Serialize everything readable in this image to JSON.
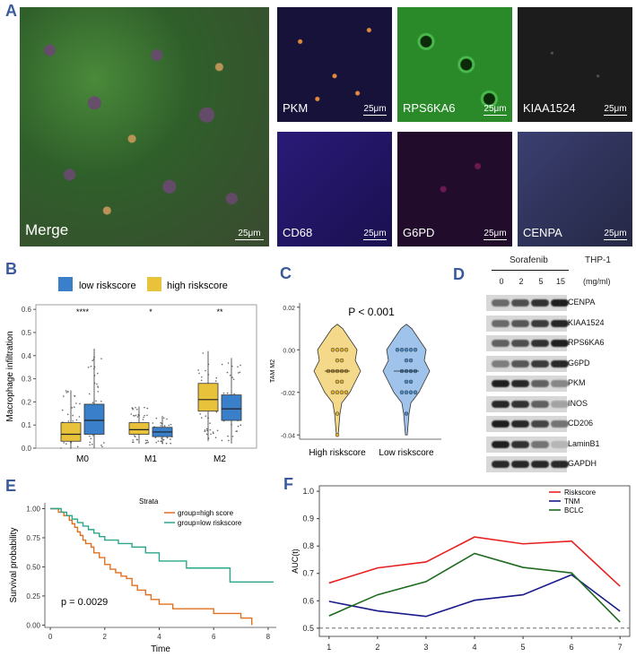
{
  "panels": {
    "a": "A",
    "b": "B",
    "c": "C",
    "d": "D",
    "e": "E",
    "f": "F"
  },
  "panelA": {
    "scale": "25μm",
    "tiles": [
      {
        "label": "Merge",
        "scale": "25μm",
        "color": "#2e6a2c"
      },
      {
        "label": "PKM",
        "scale": "25μm",
        "color": "#1a1a3a"
      },
      {
        "label": "RPS6KA6",
        "scale": "25μm",
        "color": "#1f7a20"
      },
      {
        "label": "KIAA1524",
        "scale": "25μm",
        "color": "#2a2a2a"
      },
      {
        "label": "CD68",
        "scale": "25μm",
        "color": "#1d1660"
      },
      {
        "label": "G6PD",
        "scale": "25μm",
        "color": "#2c1138"
      },
      {
        "label": "CENPA",
        "scale": "25μm",
        "color": "#2c2f52"
      }
    ]
  },
  "chart_data": [
    {
      "id": "B",
      "type": "box",
      "ylabel": "Macrophage infiltration",
      "categories": [
        "M0",
        "M1",
        "M2"
      ],
      "legend": [
        "low riskscore",
        "high riskscore"
      ],
      "colors": {
        "low": "#3a7fc9",
        "high": "#e8c23a"
      },
      "yticks": [
        "0.0",
        "0.1",
        "0.2",
        "0.3",
        "0.4",
        "0.5",
        "0.6"
      ],
      "ylim": [
        0,
        0.62
      ],
      "significance": [
        "****",
        "*",
        "**"
      ],
      "series": [
        {
          "name": "high riskscore",
          "boxes": [
            {
              "q1": 0.03,
              "median": 0.06,
              "q3": 0.11,
              "lo": 0.0,
              "hi": 0.25
            },
            {
              "q1": 0.06,
              "median": 0.08,
              "q3": 0.11,
              "lo": 0.02,
              "hi": 0.18
            },
            {
              "q1": 0.16,
              "median": 0.21,
              "q3": 0.28,
              "lo": 0.03,
              "hi": 0.42
            }
          ]
        },
        {
          "name": "low riskscore",
          "boxes": [
            {
              "q1": 0.06,
              "median": 0.12,
              "q3": 0.19,
              "lo": 0.0,
              "hi": 0.43
            },
            {
              "q1": 0.05,
              "median": 0.07,
              "q3": 0.09,
              "lo": 0.02,
              "hi": 0.14
            },
            {
              "q1": 0.12,
              "median": 0.17,
              "q3": 0.23,
              "lo": 0.02,
              "hi": 0.39
            }
          ]
        }
      ]
    },
    {
      "id": "C",
      "type": "violin",
      "ylabel": "TAM M2",
      "annotation": "P < 0.001",
      "categories": [
        "High riskscore",
        "Low riskscore"
      ],
      "yticks": [
        "0.02",
        "0.00",
        "-0.02",
        "-0.04"
      ],
      "ytick_values": [
        0.02,
        0.0,
        -0.02,
        -0.04
      ],
      "ylim": [
        -0.042,
        0.022
      ],
      "colors": [
        "#f5d98a",
        "#9fc3ea"
      ],
      "points": [
        [
          0.0,
          0.0,
          0.0,
          0.0,
          -0.005,
          -0.005,
          -0.01,
          -0.01,
          -0.01,
          -0.01,
          -0.01,
          -0.015,
          -0.015,
          -0.02,
          -0.02,
          -0.02,
          -0.02,
          -0.03,
          -0.04
        ],
        [
          0.0,
          0.0,
          0.0,
          0.0,
          0.0,
          -0.005,
          -0.005,
          -0.01,
          -0.01,
          -0.01,
          -0.01,
          -0.015,
          -0.015,
          -0.02,
          -0.02,
          -0.02,
          -0.02,
          -0.03
        ]
      ]
    },
    {
      "id": "E",
      "type": "line",
      "xlabel": "Time",
      "ylabel": "Survival probability",
      "annotation": "p = 0.0029",
      "legend_title": "Strata",
      "xticks": [
        "0",
        "2",
        "4",
        "6",
        "8"
      ],
      "xtick_values": [
        0,
        2,
        4,
        6,
        8
      ],
      "yticks": [
        "0.00",
        "0.25",
        "0.50",
        "0.75",
        "1.00"
      ],
      "ytick_values": [
        0,
        0.25,
        0.5,
        0.75,
        1.0
      ],
      "xlim": [
        -0.2,
        8.3
      ],
      "ylim": [
        -0.02,
        1.05
      ],
      "series": [
        {
          "name": "group=high score",
          "color": "#e07020",
          "x": [
            0,
            0.3,
            0.5,
            0.7,
            0.8,
            0.9,
            1.0,
            1.1,
            1.2,
            1.3,
            1.5,
            1.6,
            1.8,
            2.0,
            2.2,
            2.4,
            2.6,
            2.8,
            3.0,
            3.2,
            3.5,
            3.7,
            4.0,
            4.5,
            6.0,
            7.0,
            7.4
          ],
          "y": [
            1.0,
            0.97,
            0.94,
            0.9,
            0.87,
            0.84,
            0.8,
            0.77,
            0.73,
            0.7,
            0.67,
            0.62,
            0.58,
            0.52,
            0.48,
            0.45,
            0.42,
            0.4,
            0.34,
            0.3,
            0.26,
            0.22,
            0.18,
            0.14,
            0.1,
            0.06,
            0.0
          ]
        },
        {
          "name": "group=low riskscore",
          "color": "#2aa68a",
          "x": [
            0,
            0.4,
            0.6,
            0.8,
            1.0,
            1.2,
            1.4,
            1.6,
            1.8,
            2.0,
            2.5,
            3.0,
            3.5,
            4.0,
            5.0,
            6.6,
            8.2
          ],
          "y": [
            1.0,
            0.97,
            0.94,
            0.91,
            0.88,
            0.85,
            0.82,
            0.79,
            0.76,
            0.73,
            0.7,
            0.67,
            0.62,
            0.55,
            0.49,
            0.37,
            0.37
          ]
        }
      ]
    },
    {
      "id": "F",
      "type": "line",
      "ylabel": "AUC(t)",
      "xticks": [
        "1",
        "2",
        "3",
        "4",
        "5",
        "6",
        "7"
      ],
      "x": [
        1,
        2,
        3,
        4,
        5,
        6,
        7
      ],
      "yticks": [
        "0.5",
        "0.6",
        "0.7",
        "0.8",
        "0.9",
        "1.0"
      ],
      "ytick_values": [
        0.5,
        0.6,
        0.7,
        0.8,
        0.9,
        1.0
      ],
      "xlim": [
        0.8,
        7.2
      ],
      "ylim": [
        0.47,
        1.02
      ],
      "reference_line": 0.5,
      "series": [
        {
          "name": "Riskscore",
          "color": "#e82020",
          "values": [
            0.665,
            0.72,
            0.742,
            0.833,
            0.808,
            0.818,
            0.653
          ]
        },
        {
          "name": "TNM",
          "color": "#1a1a8a",
          "values": [
            0.598,
            0.563,
            0.543,
            0.602,
            0.622,
            0.695,
            0.562
          ]
        },
        {
          "name": "BCLC",
          "color": "#1e6a1e",
          "values": [
            0.545,
            0.622,
            0.67,
            0.773,
            0.722,
            0.702,
            0.522
          ]
        }
      ]
    }
  ],
  "panelD": {
    "treatment": "Sorafenib",
    "cell": "THP-1",
    "unit": "(mg/ml)",
    "doses": [
      "0",
      "2",
      "5",
      "15"
    ],
    "bands": [
      {
        "label": "CENPA",
        "intensity": [
          0.55,
          0.7,
          0.85,
          0.95
        ]
      },
      {
        "label": "KIAA1524",
        "intensity": [
          0.55,
          0.65,
          0.8,
          0.9
        ]
      },
      {
        "label": "RPS6KA6",
        "intensity": [
          0.6,
          0.7,
          0.85,
          0.95
        ]
      },
      {
        "label": "G6PD",
        "intensity": [
          0.45,
          0.65,
          0.8,
          0.9
        ]
      },
      {
        "label": "PKM",
        "intensity": [
          0.95,
          0.9,
          0.6,
          0.4
        ]
      },
      {
        "label": "INOS",
        "intensity": [
          0.9,
          0.85,
          0.6,
          0.25
        ]
      },
      {
        "label": "CD206",
        "intensity": [
          0.95,
          0.9,
          0.75,
          0.5
        ]
      },
      {
        "label": "LaminB1",
        "intensity": [
          0.95,
          0.85,
          0.5,
          0.15
        ]
      },
      {
        "label": "GAPDH",
        "intensity": [
          0.9,
          0.9,
          0.9,
          0.9
        ]
      }
    ]
  }
}
